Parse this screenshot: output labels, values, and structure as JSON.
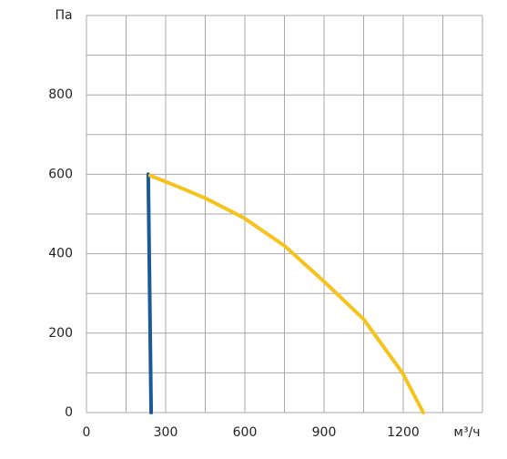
{
  "chart_data": {
    "type": "line",
    "xlabel": "м³/ч",
    "ylabel": "Па",
    "xlim": [
      0,
      1500
    ],
    "ylim": [
      0,
      1000
    ],
    "xticks": [
      0,
      300,
      600,
      900,
      1200
    ],
    "yticks": [
      0,
      200,
      400,
      600,
      800
    ],
    "xgrid": [
      0,
      150,
      300,
      450,
      600,
      750,
      900,
      1050,
      1200,
      1350,
      1500
    ],
    "ygrid": [
      0,
      100,
      200,
      300,
      400,
      500,
      600,
      700,
      800,
      900,
      1000
    ],
    "grid": true,
    "series": [
      {
        "color": "#1b5a98",
        "x": [
          234,
          245
        ],
        "values": [
          600,
          0
        ]
      },
      {
        "color": "#f6c31c",
        "x": [
          241,
          350,
          450,
          597,
          750,
          900,
          1050,
          1197,
          1276
        ],
        "values": [
          597,
          568,
          540,
          490,
          420,
          330,
          235,
          100,
          0
        ]
      }
    ]
  }
}
